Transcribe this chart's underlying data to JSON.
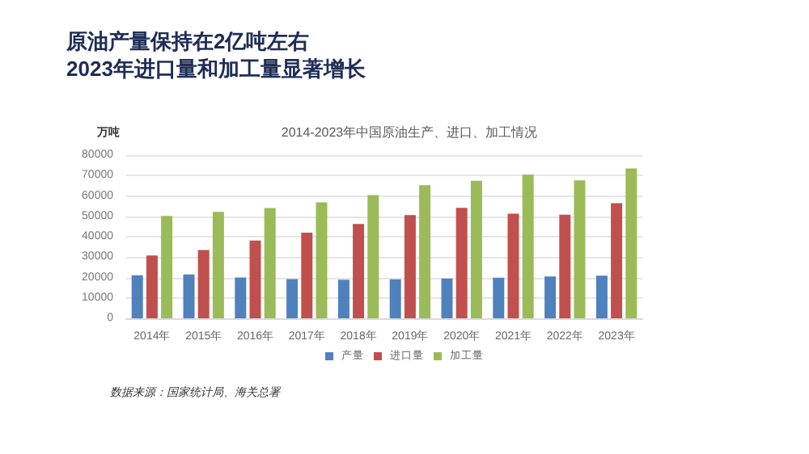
{
  "chart_data": {
    "type": "bar",
    "title": "原油产量保持在2亿吨左右\n2023年进口量和加工量显著增长",
    "subtitle": "2014-2023年中国原油生产、进口、加工情况",
    "ylabel": "万吨",
    "categories": [
      "2014年",
      "2015年",
      "2016年",
      "2017年",
      "2018年",
      "2019年",
      "2020年",
      "2021年",
      "2022年",
      "2023年"
    ],
    "series": [
      {
        "name": "产量",
        "color": "#4f81bd",
        "values": [
          21100,
          21500,
          20000,
          19200,
          18900,
          19100,
          19500,
          19900,
          20500,
          20900
        ]
      },
      {
        "name": "进口量",
        "color": "#c0504d",
        "values": [
          30800,
          33500,
          38100,
          42000,
          46200,
          50600,
          54200,
          51300,
          50800,
          56400
        ]
      },
      {
        "name": "加工量",
        "color": "#9bbb59",
        "values": [
          50200,
          52200,
          54100,
          56800,
          60400,
          65200,
          67400,
          70400,
          67600,
          73500
        ]
      }
    ],
    "ylim": [
      0,
      80000
    ],
    "yticks": [
      0,
      10000,
      20000,
      30000,
      40000,
      50000,
      60000,
      70000,
      80000
    ],
    "grid": "y",
    "legend": "bottom",
    "annotations": [
      "数据来源：国家统计局、海关总署"
    ]
  }
}
